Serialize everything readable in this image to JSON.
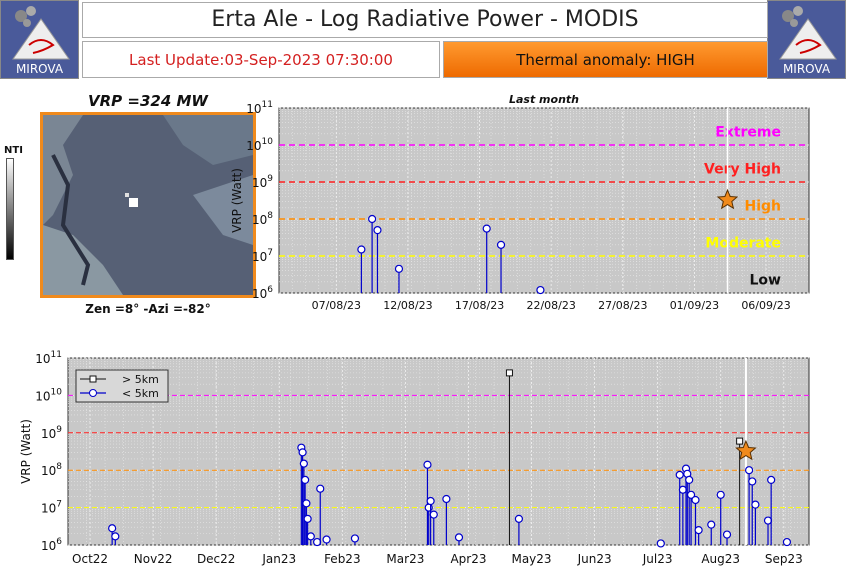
{
  "header": {
    "title": "Erta Ale - Log Radiative Power - MODIS",
    "last_update": "Last Update:03-Sep-2023 07:30:00",
    "anomaly": "Thermal anomaly:  HIGH",
    "logo_text": "MIROVA"
  },
  "thumbnail": {
    "title": "VRP =324 MW",
    "caption": "Zen =8° -Azi =-82°",
    "colorbar_label": "NTI"
  },
  "colors": {
    "extreme": "#ff00ff",
    "very_high": "#ff2020",
    "high": "#ff8c00",
    "moderate": "#ffff00",
    "low": "#111111",
    "series_near": "#0000cc",
    "plot_bg": "#c8c8c8",
    "star": "#f08a1c"
  },
  "chart_data": [
    {
      "type": "scatter",
      "title": "Last month",
      "ylabel": "VRP (Watt)",
      "yscale": "log",
      "ylim": [
        1000000,
        100000000000
      ],
      "xlim": [
        "2023-08-03",
        "2023-09-09"
      ],
      "x_ticks": [
        "07/08/23",
        "12/08/23",
        "17/08/23",
        "22/08/23",
        "27/08/23",
        "01/09/23",
        "06/09/23"
      ],
      "y_ticks": [
        "10^6",
        "10^7",
        "10^8",
        "10^9",
        "10^10",
        "10^11"
      ],
      "thresholds": [
        {
          "name": "Extreme",
          "value": 10000000000
        },
        {
          "name": "Very High",
          "value": 1000000000
        },
        {
          "name": "High",
          "value": 100000000
        },
        {
          "name": "Moderate",
          "value": 10000000
        },
        {
          "name": "Low",
          "value": null
        }
      ],
      "series": [
        {
          "name": "< 5km",
          "x": [
            "2023-08-08T18:00",
            "2023-08-09T12:00",
            "2023-08-09T21:00",
            "2023-08-11T09:00",
            "2023-08-17T12:00",
            "2023-08-18T12:00",
            "2023-08-21T06:00"
          ],
          "y": [
            15000000,
            100000000,
            50000000,
            4500000,
            55000000,
            20000000,
            1200000
          ]
        }
      ],
      "current": {
        "x": "2023-09-03T07:30",
        "y": 324000000
      }
    },
    {
      "type": "scatter",
      "ylabel": "VRP (Watt)",
      "yscale": "log",
      "ylim": [
        1000000,
        100000000000
      ],
      "x_ticks": [
        "Oct22",
        "Nov22",
        "Dec22",
        "Jan23",
        "Feb23",
        "Mar23",
        "Apr23",
        "May23",
        "Jun23",
        "Jul23",
        "Aug23",
        "Sep23"
      ],
      "y_ticks": [
        "10^6",
        "10^7",
        "10^8",
        "10^9",
        "10^10",
        "10^11"
      ],
      "legend": [
        "> 5km",
        "< 5km"
      ],
      "legend_position": "top-left",
      "series": [
        {
          "name": "> 5km",
          "x": [
            7.3,
            10.95
          ],
          "y": [
            40000000000,
            600000000
          ]
        },
        {
          "name": "< 5km",
          "x": [
            1.0,
            1.05,
            4.0,
            4.02,
            4.04,
            4.06,
            4.08,
            4.1,
            4.15,
            4.25,
            4.3,
            4.4,
            4.85,
            6.0,
            6.02,
            6.05,
            6.1,
            6.3,
            6.5,
            7.45,
            9.7,
            10.0,
            10.05,
            10.1,
            10.12,
            10.15,
            10.18,
            10.25,
            10.3,
            10.5,
            10.65,
            10.75,
            11.1,
            11.15,
            11.2,
            11.4,
            11.45,
            11.7
          ],
          "y": [
            2800000,
            1700000,
            400000000,
            300000000,
            150000000,
            55000000,
            13000000,
            5000000,
            1700000,
            1200000,
            32000000,
            1400000,
            1500000,
            140000000,
            10000000,
            15000000,
            6500000,
            17000000,
            1600000,
            5000000,
            1100000,
            75000000,
            30000000,
            110000000,
            80000000,
            55000000,
            22000000,
            16000000,
            2500000,
            3500000,
            22000000,
            1900000,
            100000000,
            50000000,
            12000000,
            4500000,
            55000000,
            1200000
          ]
        }
      ],
      "current": {
        "x": 11.05,
        "y": 324000000
      }
    }
  ]
}
